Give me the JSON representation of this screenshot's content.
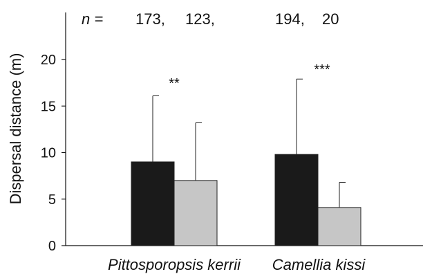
{
  "chart_data": {
    "type": "bar",
    "categories": [
      "Pittosporopsis kerrii",
      "Camellia kissi"
    ],
    "series": [
      {
        "color": "#1a1a1a",
        "values": [
          9.0,
          9.8
        ],
        "error_upper": [
          16.1,
          17.9
        ]
      },
      {
        "color": "#c6c6c6",
        "values": [
          7.0,
          4.1
        ],
        "error_upper": [
          13.2,
          6.8
        ]
      }
    ],
    "ylabel": "Dispersal distance (m)",
    "ylim": [
      0,
      25
    ],
    "yticks": [
      "0",
      "5",
      "10",
      "15",
      "20"
    ],
    "n_label": "n =",
    "n_values": [
      "173,",
      "123,",
      "194,",
      "20"
    ],
    "significance": [
      "**",
      "***"
    ]
  }
}
